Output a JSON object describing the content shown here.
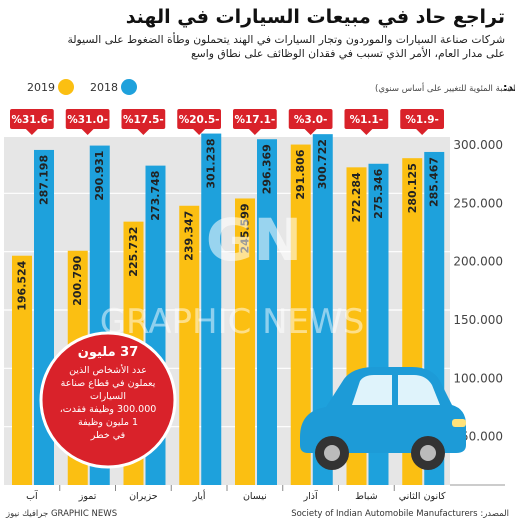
{
  "header": {
    "title": "تراجع حاد في مبيعات السيارات في الهند",
    "subtitle_lines": [
      "شركات صناعة السيارات والموردون وتجار السيارات في الهند يتحملون وطأة الضغوط على السيولة",
      "على مدار العام، الأمر الذي تسبب في فقدان الوظائف على نطاق واسع"
    ]
  },
  "legend": {
    "title": "مبيعات السيارات في الهند:",
    "note": "(الوحدات، النسبة المئوية للتغيير على أساس سنوي)",
    "items": [
      {
        "label": "2018",
        "color": "#1ea1dc"
      },
      {
        "label": "2019",
        "color": "#fbbf12"
      }
    ]
  },
  "colors": {
    "bar_2018": "#1ea1dc",
    "bar_2019": "#fbbf12",
    "badge": "#d9222a",
    "panel": "#e6e6e6",
    "gridline": "#ffffff",
    "circle": "#d9222a",
    "car": "#1d9bd7"
  },
  "chart_data": {
    "type": "bar",
    "categories": [
      "كانون الثاني",
      "شباط",
      "آذار",
      "نيسان",
      "أيار",
      "حزيران",
      "تموز",
      "آب"
    ],
    "category_order": "right-to-left",
    "series": [
      {
        "name": "2018",
        "values": [
          285467,
          275346,
          300722,
          296369,
          301238,
          273748,
          290931,
          287198
        ],
        "labels": [
          "285.467",
          "275.346",
          "300.722",
          "296.369",
          "301.238",
          "273.748",
          "290.931",
          "287.198"
        ]
      },
      {
        "name": "2019",
        "values": [
          280125,
          272284,
          291806,
          245599,
          239347,
          225732,
          200790,
          196524
        ],
        "labels": [
          "280.125",
          "272.284",
          "291.806",
          "245.599",
          "239.347",
          "225.732",
          "200.790",
          "196.524"
        ]
      }
    ],
    "pct_change": [
      "%1.9-",
      "%1.1-",
      "%3.0-",
      "%17.1-",
      "%20.5-",
      "%17.5-",
      "%31.0-",
      "%31.6-"
    ],
    "ylim": [
      0,
      300000
    ],
    "yticks": [
      0,
      50000,
      100000,
      150000,
      200000,
      250000,
      300000
    ],
    "ytick_labels": [
      "",
      "50.000",
      "100.000",
      "150.000",
      "200.000",
      "250.000",
      "300.000"
    ],
    "grid": true
  },
  "callout": {
    "headline": "37 مليون",
    "lines": [
      "عدد الأشخاص الذين",
      "يعملون في قطاع صناعة",
      "السيارات",
      "300.000 وظيفة فقدت،",
      "1 مليون وظيفة",
      "في خطر"
    ]
  },
  "watermark": {
    "monogram": "GN",
    "text": "GRAPHIC NEWS"
  },
  "footer": {
    "source": "المصدر: Society of Indian Automobile Manufacturers",
    "credit": "GRAPHIC NEWS جرافيك نيوز"
  }
}
